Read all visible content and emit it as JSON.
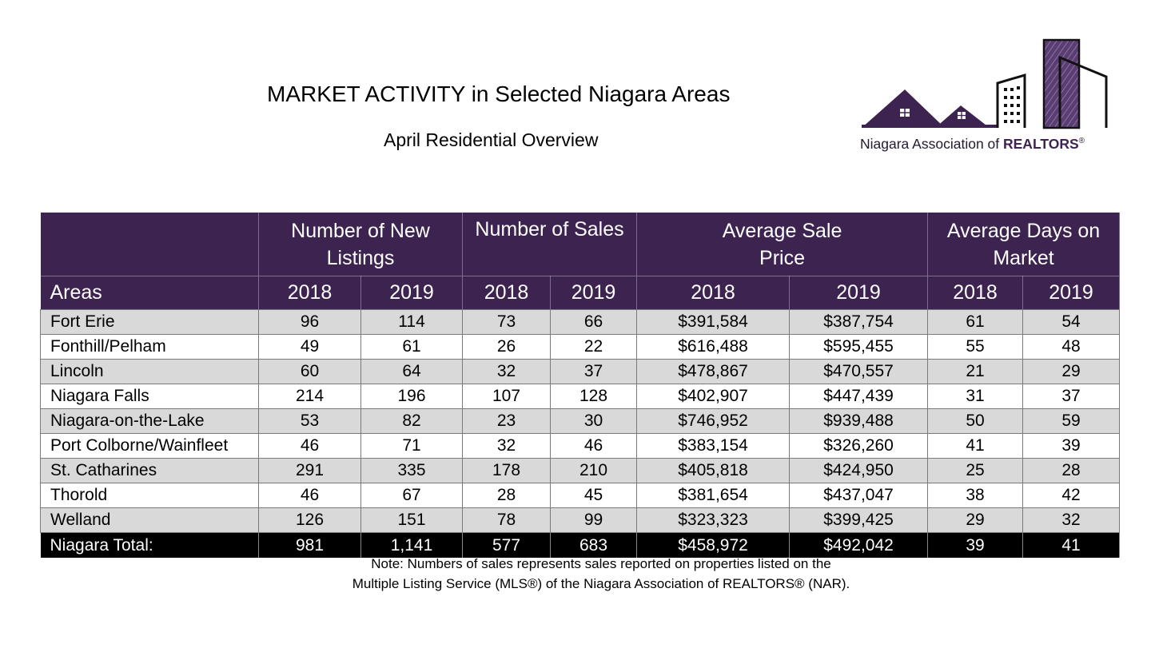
{
  "header": {
    "title": "MARKET ACTIVITY in Selected Niagara Areas",
    "subtitle": "April Residential Overview"
  },
  "logo": {
    "text_prefix": "Niagara Association of ",
    "text_brand": "REALTORS",
    "text_mark": "®",
    "colors": {
      "purple": "#3d2350",
      "dark": "#231a2e"
    }
  },
  "table": {
    "group_headers": [
      "",
      "Number of New Listings",
      "Number of Sales",
      "Average Sale Price",
      "Average Days on Market"
    ],
    "group_header_lines": [
      [
        "",
        ""
      ],
      [
        "Number of New",
        "Listings"
      ],
      [
        "Number of Sales",
        ""
      ],
      [
        "Average Sale",
        "Price"
      ],
      [
        "Average Days on",
        "Market"
      ]
    ],
    "areas_label": "Areas",
    "years": [
      "2018",
      "2019",
      "2018",
      "2019",
      "2018",
      "2019",
      "2018",
      "2019"
    ],
    "rows": [
      [
        "Fort Erie",
        "96",
        "114",
        "73",
        "66",
        "$391,584",
        "$387,754",
        "61",
        "54"
      ],
      [
        "Fonthill/Pelham",
        "49",
        "61",
        "26",
        "22",
        "$616,488",
        "$595,455",
        "55",
        "48"
      ],
      [
        "Lincoln",
        "60",
        "64",
        "32",
        "37",
        "$478,867",
        "$470,557",
        "21",
        "29"
      ],
      [
        "Niagara Falls",
        "214",
        "196",
        "107",
        "128",
        "$402,907",
        "$447,439",
        "31",
        "37"
      ],
      [
        "Niagara-on-the-Lake",
        "53",
        "82",
        "23",
        "30",
        "$746,952",
        "$939,488",
        "50",
        "59"
      ],
      [
        "Port Colborne/Wainfleet",
        "46",
        "71",
        "32",
        "46",
        "$383,154",
        "$326,260",
        "41",
        "39"
      ],
      [
        "St. Catharines",
        "291",
        "335",
        "178",
        "210",
        "$405,818",
        "$424,950",
        "25",
        "28"
      ],
      [
        "Thorold",
        "46",
        "67",
        "28",
        "45",
        "$381,654",
        "$437,047",
        "38",
        "42"
      ],
      [
        "Welland",
        "126",
        "151",
        "78",
        "99",
        "$323,323",
        "$399,425",
        "29",
        "32"
      ]
    ],
    "total": [
      "Niagara Total:",
      "981",
      "1,141",
      "577",
      "683",
      "$458,972",
      "$492,042",
      "39",
      "41"
    ],
    "colors": {
      "header_bg": "#3d2350",
      "shade_bg": "#d9d9d9",
      "total_bg": "#000000"
    }
  },
  "note": {
    "line1": "Note: Numbers of sales represents sales reported on properties listed on the",
    "line2": "Multiple Listing Service (MLS®) of the Niagara Association of REALTORS® (NAR)."
  }
}
